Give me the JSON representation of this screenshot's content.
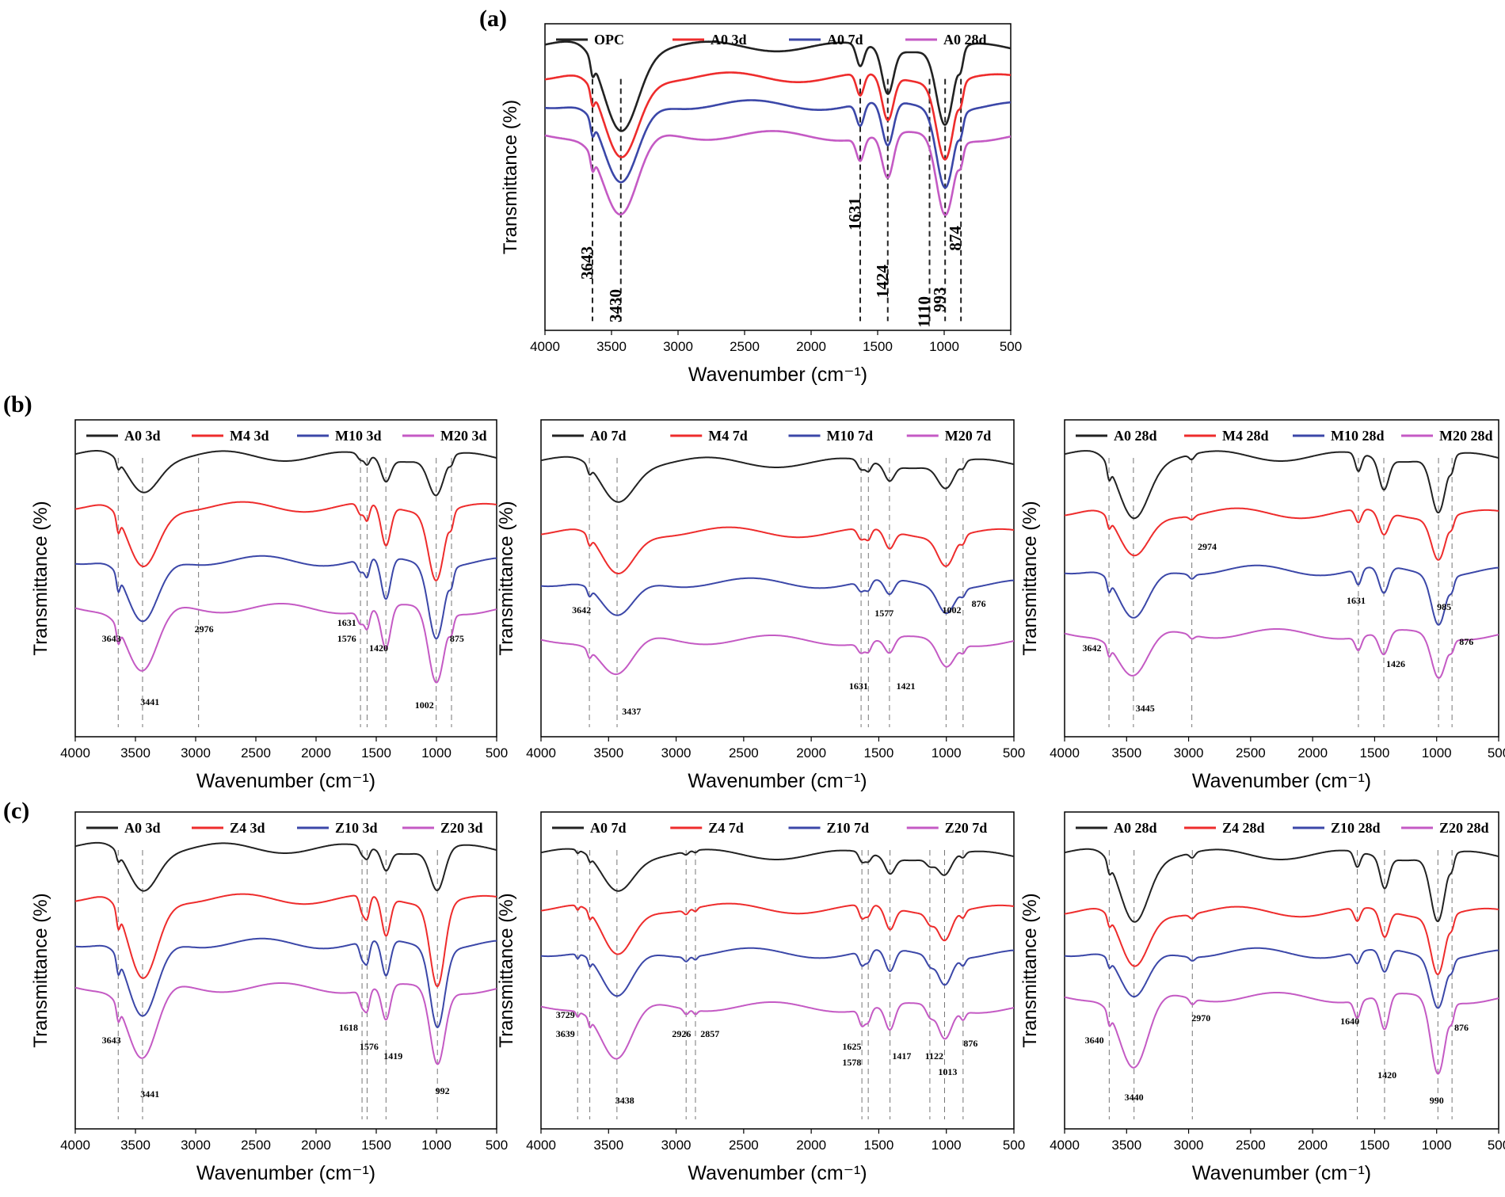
{
  "colors": {
    "black": "#222222",
    "red": "#ee2c2c",
    "blue": "#3b47a8",
    "magenta": "#c45ac4"
  },
  "panel_labels": {
    "a": "(a)",
    "b": "(b)",
    "c": "(c)"
  },
  "chart_data": [
    {
      "id": "a",
      "type": "line",
      "title": "",
      "xlabel": "Wavenumber (cm⁻¹)",
      "ylabel": "Transmittance (%)",
      "xlim": [
        4000,
        500
      ],
      "xticks": [
        4000,
        3500,
        3000,
        2500,
        2000,
        1500,
        1000,
        500
      ],
      "legend": [
        "OPC",
        "A0 3d",
        "A0 7d",
        "A0 28d"
      ],
      "series_colors": [
        "black",
        "red",
        "blue",
        "magenta"
      ],
      "offsets": [
        0.08,
        0.18,
        0.27,
        0.37
      ],
      "depths": [
        0.9,
        0.9,
        0.9,
        0.9
      ],
      "peaks": [
        {
          "x": 3430,
          "depth": 0.3,
          "width": 180
        },
        {
          "x": 3643,
          "depth": 0.05,
          "width": 20
        },
        {
          "x": 1631,
          "depth": 0.08,
          "width": 40
        },
        {
          "x": 1424,
          "depth": 0.16,
          "width": 60
        },
        {
          "x": 993,
          "depth": 0.28,
          "width": 90
        },
        {
          "x": 874,
          "depth": 0.05,
          "width": 25
        }
      ],
      "markers": [
        3643,
        3430,
        1631,
        1424,
        1110,
        993,
        874
      ],
      "annotations": [
        {
          "text": "3643",
          "x": 3643,
          "y": 0.78,
          "rot": -90
        },
        {
          "text": "3430",
          "x": 3430,
          "y": 0.92,
          "rot": -90
        },
        {
          "text": "1631",
          "x": 1631,
          "y": 0.62,
          "rot": -90
        },
        {
          "text": "1424",
          "x": 1424,
          "y": 0.84,
          "rot": -90
        },
        {
          "text": "1110",
          "x": 1110,
          "y": 0.94,
          "rot": -90
        },
        {
          "text": "993",
          "x": 993,
          "y": 0.9,
          "rot": -90
        },
        {
          "text": "874",
          "x": 874,
          "y": 0.7,
          "rot": -90
        }
      ]
    },
    {
      "id": "b1",
      "type": "line",
      "xlabel": "Wavenumber (cm⁻¹)",
      "ylabel": "Transmittance (%)",
      "xlim": [
        4000,
        500
      ],
      "xticks": [
        4000,
        3500,
        3000,
        2500,
        2000,
        1500,
        1000,
        500
      ],
      "legend": [
        "A0 3d",
        "M4 3d",
        "M10 3d",
        "M20 3d"
      ],
      "series_colors": [
        "black",
        "red",
        "blue",
        "magenta"
      ],
      "offsets": [
        0.12,
        0.28,
        0.45,
        0.6
      ],
      "depths": [
        0.5,
        0.9,
        0.95,
        0.95
      ],
      "peaks": [
        {
          "x": 3441,
          "depth": 0.22,
          "width": 180
        },
        {
          "x": 3643,
          "depth": 0.05,
          "width": 20
        },
        {
          "x": 1631,
          "depth": 0.04,
          "width": 35
        },
        {
          "x": 1576,
          "depth": 0.06,
          "width": 30
        },
        {
          "x": 1420,
          "depth": 0.14,
          "width": 55
        },
        {
          "x": 1002,
          "depth": 0.24,
          "width": 90
        },
        {
          "x": 875,
          "depth": 0.04,
          "width": 25
        }
      ],
      "markers": [
        3643,
        3441,
        2976,
        1631,
        1576,
        1420,
        1002,
        875
      ],
      "annotations": [
        {
          "text": "3643",
          "x": 3700,
          "y": 0.7
        },
        {
          "text": "3441",
          "x": 3380,
          "y": 0.9
        },
        {
          "text": "2976",
          "x": 2930,
          "y": 0.67
        },
        {
          "text": "1631",
          "x": 1745,
          "y": 0.65
        },
        {
          "text": "1576",
          "x": 1745,
          "y": 0.7
        },
        {
          "text": "1420",
          "x": 1480,
          "y": 0.73
        },
        {
          "text": "1002",
          "x": 1100,
          "y": 0.91
        },
        {
          "text": "875",
          "x": 830,
          "y": 0.7
        }
      ]
    },
    {
      "id": "b2",
      "type": "line",
      "xlabel": "Wavenumber (cm⁻¹)",
      "ylabel": "Transmittance (%)",
      "xlim": [
        4000,
        500
      ],
      "xticks": [
        4000,
        3500,
        3000,
        2500,
        2000,
        1500,
        1000,
        500
      ],
      "legend": [
        "A0 7d",
        "M4 7d",
        "M10 7d",
        "M20 7d"
      ],
      "series_colors": [
        "black",
        "red",
        "blue",
        "magenta"
      ],
      "offsets": [
        0.14,
        0.36,
        0.52,
        0.7
      ],
      "depths": [
        0.6,
        0.7,
        0.6,
        0.6
      ],
      "peaks": [
        {
          "x": 3437,
          "depth": 0.2,
          "width": 170
        },
        {
          "x": 3642,
          "depth": 0.04,
          "width": 20
        },
        {
          "x": 1631,
          "depth": 0.05,
          "width": 35
        },
        {
          "x": 1577,
          "depth": 0.05,
          "width": 30
        },
        {
          "x": 1421,
          "depth": 0.08,
          "width": 50
        },
        {
          "x": 1002,
          "depth": 0.13,
          "width": 85
        },
        {
          "x": 876,
          "depth": 0.03,
          "width": 25
        }
      ],
      "markers": [
        3642,
        3437,
        1631,
        1577,
        1421,
        1002,
        876
      ],
      "annotations": [
        {
          "text": "3642",
          "x": 3700,
          "y": 0.61
        },
        {
          "text": "3437",
          "x": 3330,
          "y": 0.93
        },
        {
          "text": "1631",
          "x": 1650,
          "y": 0.85
        },
        {
          "text": "1577",
          "x": 1460,
          "y": 0.62
        },
        {
          "text": "1421",
          "x": 1300,
          "y": 0.85
        },
        {
          "text": "1002",
          "x": 960,
          "y": 0.61
        },
        {
          "text": "876",
          "x": 760,
          "y": 0.59
        }
      ]
    },
    {
      "id": "b3",
      "type": "line",
      "xlabel": "Wavenumber (cm⁻¹)",
      "ylabel": "Transmittance (%)",
      "xlim": [
        4000,
        500
      ],
      "xticks": [
        4000,
        3500,
        3000,
        2500,
        2000,
        1500,
        1000,
        500
      ],
      "legend": [
        "A0 28d",
        "M4 28d",
        "M10 28d",
        "M20 28d"
      ],
      "series_colors": [
        "black",
        "red",
        "blue",
        "magenta"
      ],
      "offsets": [
        0.12,
        0.3,
        0.48,
        0.68
      ],
      "depths": [
        0.8,
        0.6,
        0.7,
        0.6
      ],
      "peaks": [
        {
          "x": 3445,
          "depth": 0.24,
          "width": 170
        },
        {
          "x": 3642,
          "depth": 0.05,
          "width": 20
        },
        {
          "x": 2974,
          "depth": 0.02,
          "width": 30
        },
        {
          "x": 1631,
          "depth": 0.07,
          "width": 35
        },
        {
          "x": 1426,
          "depth": 0.12,
          "width": 55
        },
        {
          "x": 985,
          "depth": 0.22,
          "width": 80
        },
        {
          "x": 876,
          "depth": 0.04,
          "width": 25
        }
      ],
      "markers": [
        3642,
        3445,
        2974,
        1631,
        1426,
        985,
        876
      ],
      "annotations": [
        {
          "text": "3642",
          "x": 3780,
          "y": 0.73
        },
        {
          "text": "3445",
          "x": 3350,
          "y": 0.92
        },
        {
          "text": "2974",
          "x": 2850,
          "y": 0.41
        },
        {
          "text": "1631",
          "x": 1650,
          "y": 0.58
        },
        {
          "text": "1426",
          "x": 1330,
          "y": 0.78
        },
        {
          "text": "985",
          "x": 940,
          "y": 0.6
        },
        {
          "text": "876",
          "x": 760,
          "y": 0.71
        }
      ]
    },
    {
      "id": "c1",
      "type": "line",
      "xlabel": "Wavenumber (cm⁻¹)",
      "ylabel": "Transmittance (%)",
      "xlim": [
        4000,
        500
      ],
      "xticks": [
        4000,
        3500,
        3000,
        2500,
        2000,
        1500,
        1000,
        500
      ],
      "legend": [
        "A0 3d",
        "Z4 3d",
        "Z10 3d",
        "Z20 3d"
      ],
      "series_colors": [
        "black",
        "red",
        "blue",
        "magenta"
      ],
      "offsets": [
        0.12,
        0.28,
        0.42,
        0.56
      ],
      "depths": [
        0.5,
        1.0,
        0.95,
        0.9
      ],
      "peaks": [
        {
          "x": 3441,
          "depth": 0.26,
          "width": 170
        },
        {
          "x": 3643,
          "depth": 0.05,
          "width": 20
        },
        {
          "x": 1618,
          "depth": 0.05,
          "width": 30
        },
        {
          "x": 1576,
          "depth": 0.07,
          "width": 30
        },
        {
          "x": 1419,
          "depth": 0.12,
          "width": 50
        },
        {
          "x": 992,
          "depth": 0.26,
          "width": 85
        }
      ],
      "markers": [
        3643,
        3441,
        1618,
        1576,
        1419,
        992
      ],
      "annotations": [
        {
          "text": "3643",
          "x": 3700,
          "y": 0.73
        },
        {
          "text": "3441",
          "x": 3380,
          "y": 0.9
        },
        {
          "text": "1618",
          "x": 1730,
          "y": 0.69
        },
        {
          "text": "1576",
          "x": 1560,
          "y": 0.75
        },
        {
          "text": "1419",
          "x": 1360,
          "y": 0.78
        },
        {
          "text": "992",
          "x": 950,
          "y": 0.89
        }
      ]
    },
    {
      "id": "c2",
      "type": "line",
      "xlabel": "Wavenumber (cm⁻¹)",
      "ylabel": "Transmittance (%)",
      "xlim": [
        4000,
        500
      ],
      "xticks": [
        4000,
        3500,
        3000,
        2500,
        2000,
        1500,
        1000,
        500
      ],
      "legend": [
        "A0 7d",
        "Z4 7d",
        "Z10 7d",
        "Z20 7d"
      ],
      "series_colors": [
        "black",
        "red",
        "blue",
        "magenta"
      ],
      "offsets": [
        0.14,
        0.31,
        0.45,
        0.62
      ],
      "depths": [
        0.5,
        0.7,
        0.7,
        0.8
      ],
      "peaks": [
        {
          "x": 3438,
          "depth": 0.22,
          "width": 160
        },
        {
          "x": 3729,
          "depth": 0.02,
          "width": 15
        },
        {
          "x": 3639,
          "depth": 0.03,
          "width": 15
        },
        {
          "x": 2926,
          "depth": 0.02,
          "width": 25
        },
        {
          "x": 2857,
          "depth": 0.015,
          "width": 20
        },
        {
          "x": 1625,
          "depth": 0.06,
          "width": 30
        },
        {
          "x": 1578,
          "depth": 0.05,
          "width": 30
        },
        {
          "x": 1417,
          "depth": 0.1,
          "width": 50
        },
        {
          "x": 1122,
          "depth": 0.04,
          "width": 40
        },
        {
          "x": 1013,
          "depth": 0.12,
          "width": 70
        },
        {
          "x": 876,
          "depth": 0.03,
          "width": 25
        }
      ],
      "markers": [
        3729,
        3639,
        3438,
        2926,
        2857,
        1625,
        1578,
        1417,
        1122,
        1013,
        876
      ],
      "annotations": [
        {
          "text": "3729",
          "x": 3820,
          "y": 0.65
        },
        {
          "text": "3639",
          "x": 3820,
          "y": 0.71
        },
        {
          "text": "3438",
          "x": 3380,
          "y": 0.92
        },
        {
          "text": "2926",
          "x": 2960,
          "y": 0.71
        },
        {
          "text": "2857",
          "x": 2750,
          "y": 0.71
        },
        {
          "text": "1625",
          "x": 1700,
          "y": 0.75
        },
        {
          "text": "1578",
          "x": 1700,
          "y": 0.8
        },
        {
          "text": "1417",
          "x": 1330,
          "y": 0.78
        },
        {
          "text": "1122",
          "x": 1090,
          "y": 0.78
        },
        {
          "text": "1013",
          "x": 990,
          "y": 0.83
        },
        {
          "text": "876",
          "x": 820,
          "y": 0.74
        }
      ]
    },
    {
      "id": "c3",
      "type": "line",
      "xlabel": "Wavenumber (cm⁻¹)",
      "ylabel": "Transmittance (%)",
      "xlim": [
        4000,
        500
      ],
      "xticks": [
        4000,
        3500,
        3000,
        2500,
        2000,
        1500,
        1000,
        500
      ],
      "legend": [
        "A0 28d",
        "Z4 28d",
        "Z10 28d",
        "Z20 28d"
      ],
      "series_colors": [
        "black",
        "red",
        "blue",
        "magenta"
      ],
      "offsets": [
        0.14,
        0.32,
        0.45,
        0.59
      ],
      "depths": [
        0.8,
        0.7,
        0.6,
        0.9
      ],
      "peaks": [
        {
          "x": 3440,
          "depth": 0.26,
          "width": 160
        },
        {
          "x": 3640,
          "depth": 0.04,
          "width": 20
        },
        {
          "x": 2970,
          "depth": 0.02,
          "width": 30
        },
        {
          "x": 1640,
          "depth": 0.06,
          "width": 35
        },
        {
          "x": 1420,
          "depth": 0.12,
          "width": 50
        },
        {
          "x": 990,
          "depth": 0.26,
          "width": 80
        },
        {
          "x": 876,
          "depth": 0.04,
          "width": 25
        }
      ],
      "markers": [
        3640,
        3440,
        2970,
        1640,
        1420,
        990,
        876
      ],
      "annotations": [
        {
          "text": "3640",
          "x": 3760,
          "y": 0.73
        },
        {
          "text": "3440",
          "x": 3440,
          "y": 0.91
        },
        {
          "text": "2970",
          "x": 2900,
          "y": 0.66
        },
        {
          "text": "1640",
          "x": 1700,
          "y": 0.67
        },
        {
          "text": "1420",
          "x": 1400,
          "y": 0.84
        },
        {
          "text": "990",
          "x": 1000,
          "y": 0.92
        },
        {
          "text": "876",
          "x": 800,
          "y": 0.69
        }
      ]
    }
  ]
}
